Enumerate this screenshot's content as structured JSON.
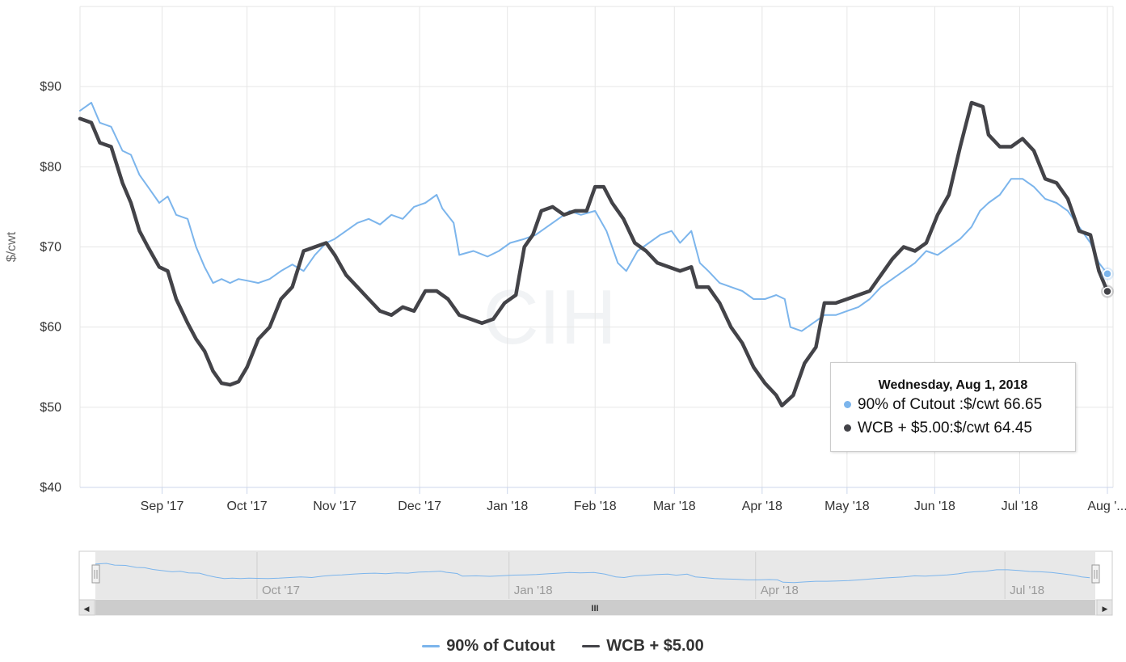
{
  "colors": {
    "cutout": "#7cb5ec",
    "wcb": "#434348",
    "grid": "#e6e6e6",
    "axis_text": "#333333",
    "nav_bg": "#e6e6e6",
    "nav_mask": "rgba(102,133,194,0.08)"
  },
  "chart_data": {
    "type": "line",
    "title": "",
    "xlabel": "",
    "ylabel": "$/cwt",
    "ylim": [
      40,
      100
    ],
    "yticks": [
      {
        "value": 90,
        "label": "$90"
      },
      {
        "value": 80,
        "label": "$80"
      },
      {
        "value": 70,
        "label": "$70"
      },
      {
        "value": 60,
        "label": "$60"
      },
      {
        "value": 50,
        "label": "$50"
      },
      {
        "value": 40,
        "label": "$40"
      }
    ],
    "xrange": [
      "2017-08-03",
      "2018-08-03"
    ],
    "xticks": [
      {
        "date": "2017-09-01",
        "label": "Sep '17"
      },
      {
        "date": "2017-10-01",
        "label": "Oct '17"
      },
      {
        "date": "2017-11-01",
        "label": "Nov '17"
      },
      {
        "date": "2017-12-01",
        "label": "Dec '17"
      },
      {
        "date": "2018-01-01",
        "label": "Jan '18"
      },
      {
        "date": "2018-02-01",
        "label": "Feb '18"
      },
      {
        "date": "2018-03-01",
        "label": "Mar '18"
      },
      {
        "date": "2018-04-01",
        "label": "Apr '18"
      },
      {
        "date": "2018-05-01",
        "label": "May '18"
      },
      {
        "date": "2018-06-01",
        "label": "Jun '18"
      },
      {
        "date": "2018-07-01",
        "label": "Jul '18"
      },
      {
        "date": "2018-08-01",
        "label": "Aug '..."
      }
    ],
    "grid": true,
    "legend_position": "bottom-center",
    "series": [
      {
        "name": "90% of Cutout",
        "points": [
          [
            "2017-08-03",
            87.0
          ],
          [
            "2017-08-07",
            88.0
          ],
          [
            "2017-08-10",
            85.5
          ],
          [
            "2017-08-14",
            85.0
          ],
          [
            "2017-08-18",
            82.0
          ],
          [
            "2017-08-21",
            81.5
          ],
          [
            "2017-08-24",
            79.0
          ],
          [
            "2017-08-27",
            77.5
          ],
          [
            "2017-08-31",
            75.5
          ],
          [
            "2017-09-03",
            76.3
          ],
          [
            "2017-09-06",
            74.0
          ],
          [
            "2017-09-10",
            73.5
          ],
          [
            "2017-09-13",
            70.0
          ],
          [
            "2017-09-16",
            67.5
          ],
          [
            "2017-09-19",
            65.5
          ],
          [
            "2017-09-22",
            66.0
          ],
          [
            "2017-09-25",
            65.5
          ],
          [
            "2017-09-28",
            66.0
          ],
          [
            "2017-10-01",
            65.8
          ],
          [
            "2017-10-05",
            65.5
          ],
          [
            "2017-10-09",
            66.0
          ],
          [
            "2017-10-13",
            67.0
          ],
          [
            "2017-10-17",
            67.8
          ],
          [
            "2017-10-21",
            67.0
          ],
          [
            "2017-10-25",
            69.0
          ],
          [
            "2017-10-29",
            70.5
          ],
          [
            "2017-11-01",
            71.0
          ],
          [
            "2017-11-05",
            72.0
          ],
          [
            "2017-11-09",
            73.0
          ],
          [
            "2017-11-13",
            73.5
          ],
          [
            "2017-11-17",
            72.8
          ],
          [
            "2017-11-21",
            74.0
          ],
          [
            "2017-11-25",
            73.5
          ],
          [
            "2017-11-29",
            75.0
          ],
          [
            "2017-12-03",
            75.5
          ],
          [
            "2017-12-07",
            76.5
          ],
          [
            "2017-12-09",
            74.8
          ],
          [
            "2017-12-13",
            73.0
          ],
          [
            "2017-12-15",
            69.0
          ],
          [
            "2017-12-20",
            69.5
          ],
          [
            "2017-12-25",
            68.8
          ],
          [
            "2017-12-29",
            69.5
          ],
          [
            "2018-01-02",
            70.5
          ],
          [
            "2018-01-07",
            71.0
          ],
          [
            "2018-01-11",
            71.5
          ],
          [
            "2018-01-15",
            72.5
          ],
          [
            "2018-01-19",
            73.5
          ],
          [
            "2018-01-23",
            74.5
          ],
          [
            "2018-01-27",
            74.0
          ],
          [
            "2018-02-01",
            74.5
          ],
          [
            "2018-02-05",
            72.0
          ],
          [
            "2018-02-09",
            68.0
          ],
          [
            "2018-02-12",
            67.0
          ],
          [
            "2018-02-16",
            69.5
          ],
          [
            "2018-02-20",
            70.5
          ],
          [
            "2018-02-24",
            71.5
          ],
          [
            "2018-02-28",
            72.0
          ],
          [
            "2018-03-03",
            70.5
          ],
          [
            "2018-03-07",
            72.0
          ],
          [
            "2018-03-10",
            68.0
          ],
          [
            "2018-03-13",
            67.0
          ],
          [
            "2018-03-17",
            65.5
          ],
          [
            "2018-03-21",
            65.0
          ],
          [
            "2018-03-25",
            64.5
          ],
          [
            "2018-03-29",
            63.5
          ],
          [
            "2018-04-02",
            63.5
          ],
          [
            "2018-04-06",
            64.0
          ],
          [
            "2018-04-09",
            63.5
          ],
          [
            "2018-04-11",
            60.0
          ],
          [
            "2018-04-15",
            59.5
          ],
          [
            "2018-04-19",
            60.5
          ],
          [
            "2018-04-23",
            61.5
          ],
          [
            "2018-04-27",
            61.5
          ],
          [
            "2018-05-01",
            62.0
          ],
          [
            "2018-05-05",
            62.5
          ],
          [
            "2018-05-09",
            63.5
          ],
          [
            "2018-05-13",
            65.0
          ],
          [
            "2018-05-17",
            66.0
          ],
          [
            "2018-05-21",
            67.0
          ],
          [
            "2018-05-25",
            68.0
          ],
          [
            "2018-05-29",
            69.5
          ],
          [
            "2018-06-02",
            69.0
          ],
          [
            "2018-06-06",
            70.0
          ],
          [
            "2018-06-10",
            71.0
          ],
          [
            "2018-06-14",
            72.5
          ],
          [
            "2018-06-17",
            74.5
          ],
          [
            "2018-06-20",
            75.5
          ],
          [
            "2018-06-24",
            76.5
          ],
          [
            "2018-06-28",
            78.5
          ],
          [
            "2018-07-02",
            78.5
          ],
          [
            "2018-07-06",
            77.5
          ],
          [
            "2018-07-10",
            76.0
          ],
          [
            "2018-07-14",
            75.5
          ],
          [
            "2018-07-18",
            74.5
          ],
          [
            "2018-07-22",
            72.5
          ],
          [
            "2018-07-26",
            70.5
          ],
          [
            "2018-07-29",
            68.0
          ],
          [
            "2018-08-01",
            66.65
          ]
        ]
      },
      {
        "name": "WCB + $5.00",
        "points": [
          [
            "2017-08-03",
            86.0
          ],
          [
            "2017-08-07",
            85.5
          ],
          [
            "2017-08-10",
            83.0
          ],
          [
            "2017-08-14",
            82.5
          ],
          [
            "2017-08-18",
            78.0
          ],
          [
            "2017-08-21",
            75.5
          ],
          [
            "2017-08-24",
            72.0
          ],
          [
            "2017-08-27",
            70.0
          ],
          [
            "2017-08-31",
            67.5
          ],
          [
            "2017-09-03",
            67.0
          ],
          [
            "2017-09-06",
            63.5
          ],
          [
            "2017-09-10",
            60.5
          ],
          [
            "2017-09-13",
            58.5
          ],
          [
            "2017-09-16",
            57.0
          ],
          [
            "2017-09-19",
            54.5
          ],
          [
            "2017-09-22",
            53.0
          ],
          [
            "2017-09-25",
            52.8
          ],
          [
            "2017-09-28",
            53.2
          ],
          [
            "2017-10-01",
            55.0
          ],
          [
            "2017-10-05",
            58.5
          ],
          [
            "2017-10-09",
            60.0
          ],
          [
            "2017-10-13",
            63.5
          ],
          [
            "2017-10-17",
            65.0
          ],
          [
            "2017-10-21",
            69.5
          ],
          [
            "2017-10-25",
            70.0
          ],
          [
            "2017-10-29",
            70.5
          ],
          [
            "2017-11-01",
            69.0
          ],
          [
            "2017-11-05",
            66.5
          ],
          [
            "2017-11-09",
            65.0
          ],
          [
            "2017-11-13",
            63.5
          ],
          [
            "2017-11-17",
            62.0
          ],
          [
            "2017-11-21",
            61.5
          ],
          [
            "2017-11-25",
            62.5
          ],
          [
            "2017-11-29",
            62.0
          ],
          [
            "2017-12-03",
            64.5
          ],
          [
            "2017-12-07",
            64.5
          ],
          [
            "2017-12-11",
            63.5
          ],
          [
            "2017-12-15",
            61.5
          ],
          [
            "2017-12-19",
            61.0
          ],
          [
            "2017-12-23",
            60.5
          ],
          [
            "2017-12-27",
            61.0
          ],
          [
            "2017-12-31",
            63.0
          ],
          [
            "2018-01-04",
            64.0
          ],
          [
            "2018-01-07",
            70.0
          ],
          [
            "2018-01-10",
            71.5
          ],
          [
            "2018-01-13",
            74.5
          ],
          [
            "2018-01-17",
            75.0
          ],
          [
            "2018-01-21",
            74.0
          ],
          [
            "2018-01-25",
            74.5
          ],
          [
            "2018-01-29",
            74.5
          ],
          [
            "2018-02-01",
            77.5
          ],
          [
            "2018-02-04",
            77.5
          ],
          [
            "2018-02-07",
            75.5
          ],
          [
            "2018-02-11",
            73.5
          ],
          [
            "2018-02-15",
            70.5
          ],
          [
            "2018-02-19",
            69.5
          ],
          [
            "2018-02-23",
            68.0
          ],
          [
            "2018-02-27",
            67.5
          ],
          [
            "2018-03-03",
            67.0
          ],
          [
            "2018-03-07",
            67.5
          ],
          [
            "2018-03-09",
            65.0
          ],
          [
            "2018-03-13",
            65.0
          ],
          [
            "2018-03-17",
            63.0
          ],
          [
            "2018-03-21",
            60.0
          ],
          [
            "2018-03-25",
            58.0
          ],
          [
            "2018-03-29",
            55.0
          ],
          [
            "2018-04-02",
            53.0
          ],
          [
            "2018-04-06",
            51.5
          ],
          [
            "2018-04-08",
            50.2
          ],
          [
            "2018-04-12",
            51.5
          ],
          [
            "2018-04-16",
            55.5
          ],
          [
            "2018-04-20",
            57.5
          ],
          [
            "2018-04-23",
            63.0
          ],
          [
            "2018-04-27",
            63.0
          ],
          [
            "2018-05-01",
            63.5
          ],
          [
            "2018-05-05",
            64.0
          ],
          [
            "2018-05-09",
            64.5
          ],
          [
            "2018-05-13",
            66.5
          ],
          [
            "2018-05-17",
            68.5
          ],
          [
            "2018-05-21",
            70.0
          ],
          [
            "2018-05-25",
            69.5
          ],
          [
            "2018-05-29",
            70.5
          ],
          [
            "2018-06-02",
            74.0
          ],
          [
            "2018-06-06",
            76.5
          ],
          [
            "2018-06-10",
            82.5
          ],
          [
            "2018-06-14",
            88.0
          ],
          [
            "2018-06-18",
            87.5
          ],
          [
            "2018-06-20",
            84.0
          ],
          [
            "2018-06-24",
            82.5
          ],
          [
            "2018-06-28",
            82.5
          ],
          [
            "2018-07-02",
            83.5
          ],
          [
            "2018-07-06",
            82.0
          ],
          [
            "2018-07-10",
            78.5
          ],
          [
            "2018-07-14",
            78.0
          ],
          [
            "2018-07-18",
            76.0
          ],
          [
            "2018-07-22",
            72.0
          ],
          [
            "2018-07-26",
            71.5
          ],
          [
            "2018-07-29",
            67.0
          ],
          [
            "2018-08-01",
            64.45
          ]
        ]
      }
    ]
  },
  "watermark": {
    "text": "CIH"
  },
  "tooltip": {
    "date": "Wednesday, Aug 1, 2018",
    "rows": [
      {
        "text": "90% of Cutout :$/cwt 66.65"
      },
      {
        "text": "WCB + $5.00:$/cwt 64.45"
      }
    ]
  },
  "navigator": {
    "labels": [
      {
        "date": "2017-10-01",
        "label": "Oct '17"
      },
      {
        "date": "2018-01-01",
        "label": "Jan '18"
      },
      {
        "date": "2018-04-01",
        "label": "Apr '18"
      },
      {
        "date": "2018-07-01",
        "label": "Jul '18"
      }
    ],
    "scrollbar_grip": "III",
    "left_arrow": "◀",
    "right_arrow": "▶"
  },
  "legend": [
    {
      "label": "90% of Cutout"
    },
    {
      "label": "WCB + $5.00"
    }
  ]
}
